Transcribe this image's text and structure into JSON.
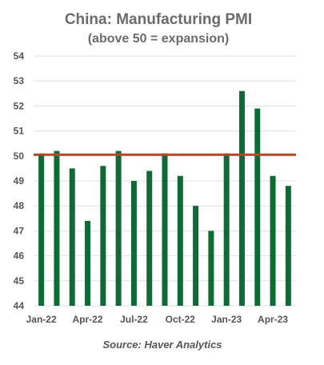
{
  "chart_data": {
    "type": "bar",
    "title": "China: Manufacturing PMI",
    "subtitle": "(above 50 = expansion)",
    "source": "Source: Haver Analytics",
    "categories": [
      "Jan-22",
      "Feb-22",
      "Mar-22",
      "Apr-22",
      "May-22",
      "Jun-22",
      "Jul-22",
      "Aug-22",
      "Sep-22",
      "Oct-22",
      "Nov-22",
      "Dec-22",
      "Jan-23",
      "Feb-23",
      "Mar-23",
      "Apr-23",
      "May-23"
    ],
    "x_tick_labels": [
      "Jan-22",
      "Apr-22",
      "Jul-22",
      "Oct-22",
      "Jan-23",
      "Apr-23"
    ],
    "values": [
      50.1,
      50.2,
      49.5,
      47.4,
      49.6,
      50.2,
      49.0,
      49.4,
      50.1,
      49.2,
      48.0,
      47.0,
      50.1,
      52.6,
      51.9,
      49.2,
      48.8
    ],
    "ylim": [
      44,
      54
    ],
    "y_ticks": [
      44,
      45,
      46,
      47,
      48,
      49,
      50,
      51,
      52,
      53,
      54
    ],
    "reference_line": 50.05,
    "grid": true,
    "colors": {
      "bar": "#0e6b35",
      "reference_line": "#b5472a",
      "grid": "#e0e0e0",
      "text": "#555555"
    }
  }
}
